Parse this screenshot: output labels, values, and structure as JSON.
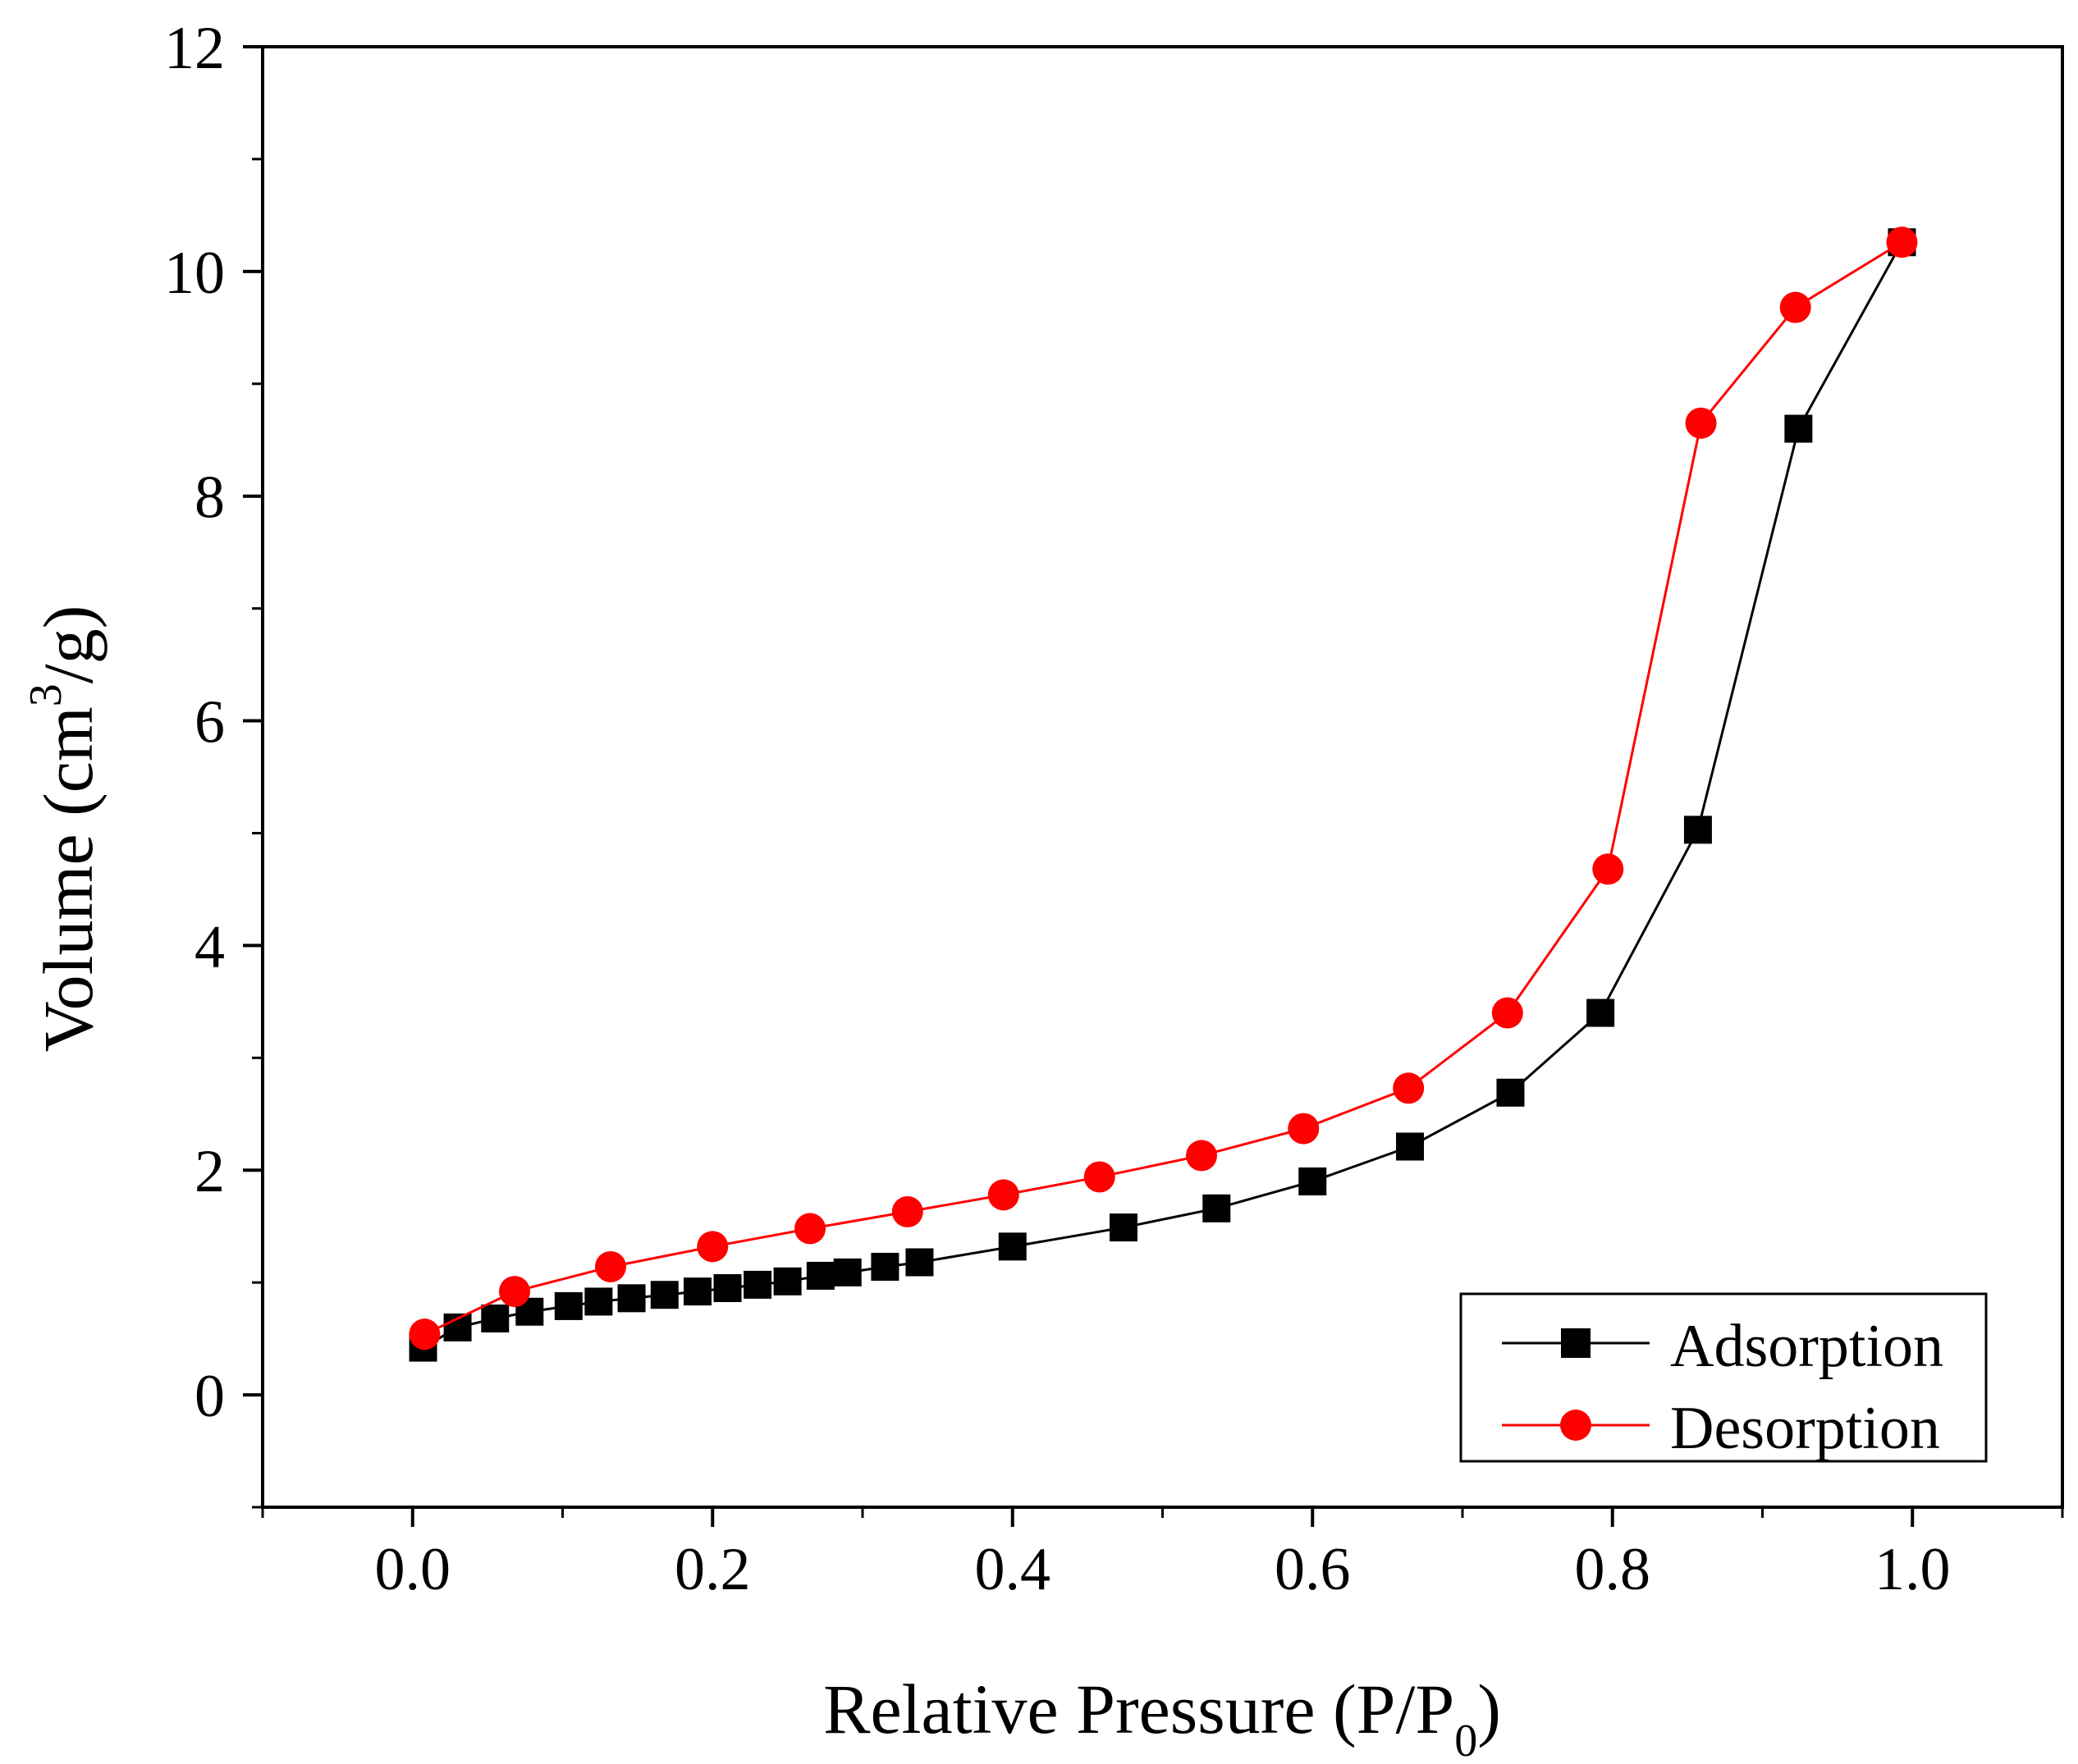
{
  "chart_data": {
    "type": "line",
    "title": "",
    "xlabel": "Relative Pressure (P/P",
    "xlabel_subscript": "0",
    "xlabel_close": ")",
    "ylabel": "Volume (cm",
    "ylabel_superscript": "3",
    "ylabel_close": "/g)",
    "xlim": [
      -0.1,
      1.1
    ],
    "ylim": [
      -1,
      12
    ],
    "xticks": [
      0.0,
      0.2,
      0.4,
      0.6,
      0.8,
      1.0
    ],
    "xtick_labels": [
      "0.0",
      "0.2",
      "0.4",
      "0.6",
      "0.8",
      "1.0"
    ],
    "yticks": [
      0,
      2,
      4,
      6,
      8,
      10,
      12
    ],
    "ytick_labels": [
      "0",
      "2",
      "4",
      "6",
      "8",
      "10",
      "12"
    ],
    "grid": false,
    "legend_position": "bottom-right",
    "series": [
      {
        "name": "Adsorption",
        "color": "#000000",
        "marker": "square",
        "x": [
          0.007,
          0.03,
          0.055,
          0.078,
          0.104,
          0.124,
          0.146,
          0.168,
          0.19,
          0.21,
          0.23,
          0.25,
          0.272,
          0.29,
          0.315,
          0.338,
          0.4,
          0.474,
          0.536,
          0.6,
          0.665,
          0.732,
          0.792,
          0.857,
          0.924,
          0.993
        ],
        "y": [
          0.42,
          0.6,
          0.68,
          0.74,
          0.79,
          0.83,
          0.86,
          0.89,
          0.92,
          0.95,
          0.98,
          1.01,
          1.06,
          1.09,
          1.14,
          1.18,
          1.32,
          1.49,
          1.66,
          1.9,
          2.21,
          2.69,
          3.4,
          5.03,
          8.6,
          10.26
        ]
      },
      {
        "name": "Desorption",
        "color": "#ff0000",
        "marker": "circle",
        "x": [
          0.008,
          0.068,
          0.132,
          0.2,
          0.265,
          0.33,
          0.394,
          0.458,
          0.526,
          0.594,
          0.664,
          0.73,
          0.797,
          0.859,
          0.922,
          0.993
        ],
        "y": [
          0.54,
          0.92,
          1.14,
          1.32,
          1.48,
          1.63,
          1.78,
          1.94,
          2.13,
          2.37,
          2.73,
          3.4,
          4.68,
          8.65,
          9.68,
          10.26
        ]
      }
    ]
  }
}
